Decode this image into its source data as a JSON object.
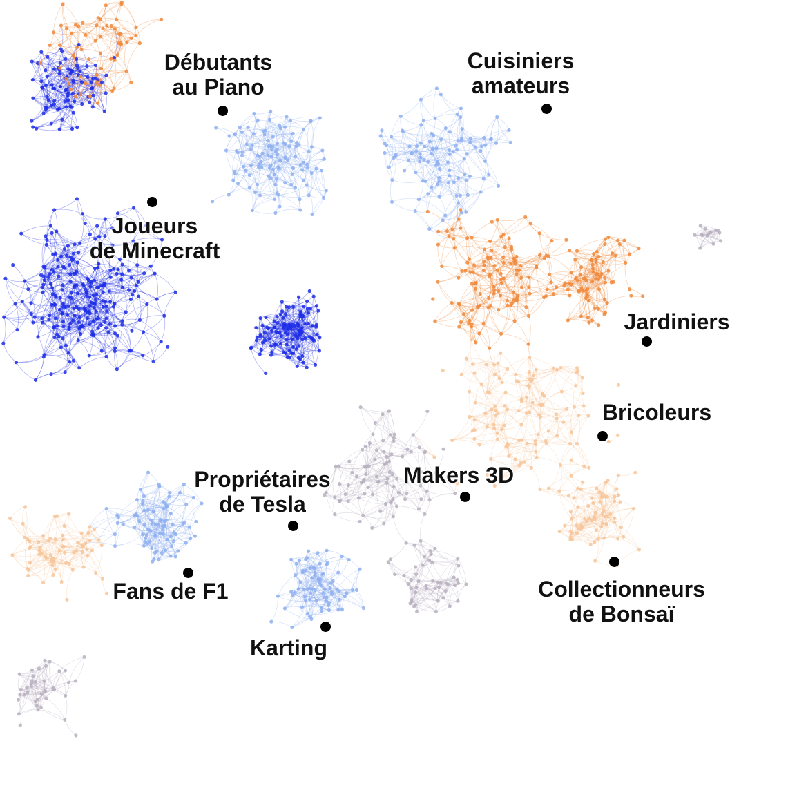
{
  "colors": {
    "blue_dark": "#1f2ee6",
    "blue_light": "#8fb0f0",
    "orange": "#f08a3c",
    "orange_light": "#f7c59a",
    "grey": "#b8b0c0",
    "label": "#111111",
    "dot": "#000000"
  },
  "clusters": [
    {
      "id": "debutants-piano",
      "text": "Débutants\nau Piano"
    },
    {
      "id": "cuisiniers-amateurs",
      "text": "Cuisiniers\namateurs"
    },
    {
      "id": "joueurs-minecraft",
      "text": "Joueurs\nde Minecraft"
    },
    {
      "id": "jardiniers",
      "text": "Jardiniers"
    },
    {
      "id": "bricoleurs",
      "text": "Bricoleurs"
    },
    {
      "id": "makers-3d",
      "text": "Makers 3D"
    },
    {
      "id": "proprietaires-tesla",
      "text": "Propriétaires\nde Tesla"
    },
    {
      "id": "fans-f1",
      "text": "Fans de F1"
    },
    {
      "id": "collectionneurs-bonsai",
      "text": "Collectionneurs\nde Bonsaï"
    },
    {
      "id": "karting",
      "text": "Karting"
    }
  ]
}
